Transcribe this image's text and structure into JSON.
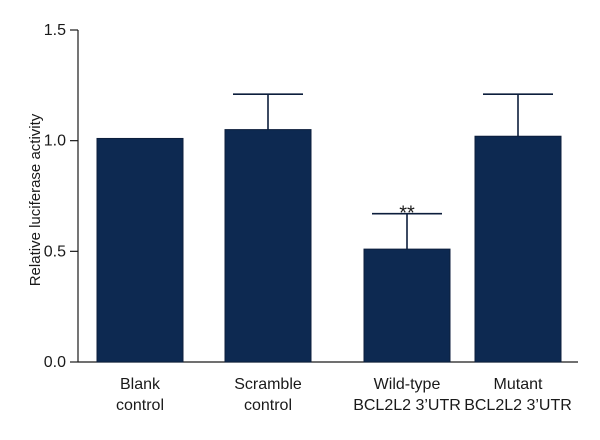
{
  "chart_data": {
    "type": "bar",
    "categories": [
      [
        "Blank",
        "control"
      ],
      [
        "Scramble",
        "control"
      ],
      [
        "Wild-type",
        "BCL2L2 3’UTR"
      ],
      [
        "Mutant",
        "BCL2L2 3’UTR"
      ]
    ],
    "values": [
      1.01,
      1.05,
      0.51,
      1.02
    ],
    "error_upper": [
      0.0,
      0.16,
      0.16,
      0.19
    ],
    "annotations": [
      {
        "category_index": 2,
        "text": "**"
      }
    ],
    "ylabel": "Relative luciferase activity",
    "xlabel": "",
    "ylim": [
      0.0,
      1.5
    ],
    "yticks": [
      "0.0",
      "0.5",
      "1.0",
      "1.5"
    ],
    "bar_color": "#0d2951",
    "grid": false
  }
}
